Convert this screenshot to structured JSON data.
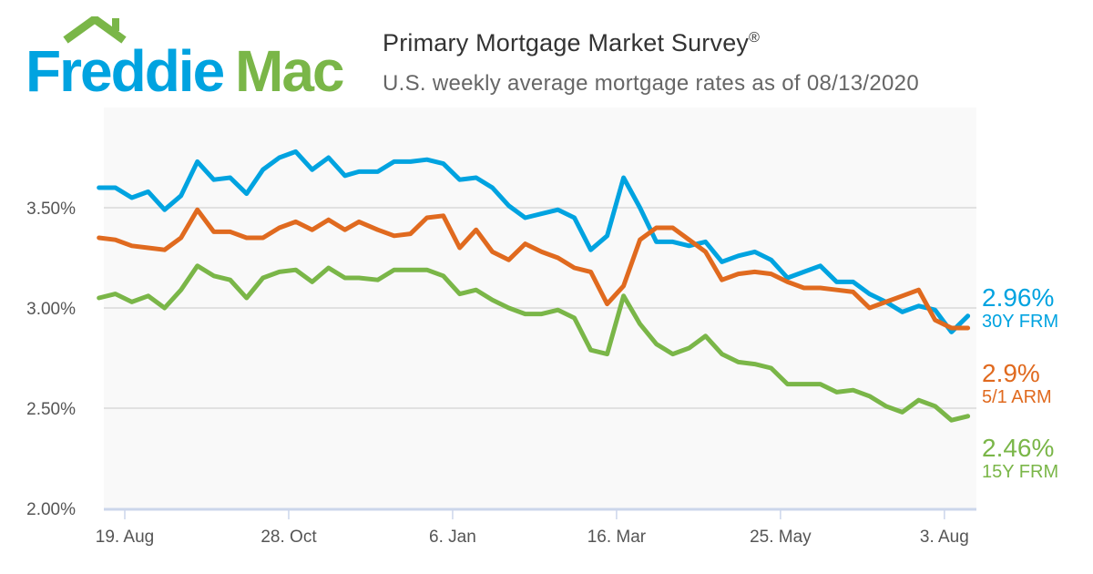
{
  "logo": {
    "text_part1": "Freddie",
    "text_part2": "Mac",
    "color_blue": "#00a3e0",
    "color_green": "#7ab648"
  },
  "header": {
    "title": "Primary Mortgage Market Survey",
    "title_mark": "®",
    "subtitle": "U.S. weekly average mortgage rates as of 08/13/2020"
  },
  "chart_data": {
    "type": "line",
    "title": "Primary Mortgage Market Survey®",
    "subtitle": "U.S. weekly average mortgage rates as of 08/13/2020",
    "x": [
      "2019-08-08",
      "2019-08-15",
      "2019-08-22",
      "2019-08-29",
      "2019-09-05",
      "2019-09-12",
      "2019-09-19",
      "2019-09-26",
      "2019-10-03",
      "2019-10-10",
      "2019-10-17",
      "2019-10-24",
      "2019-10-31",
      "2019-11-07",
      "2019-11-14",
      "2019-11-21",
      "2019-11-27",
      "2019-12-05",
      "2019-12-12",
      "2019-12-19",
      "2019-12-26",
      "2020-01-02",
      "2020-01-09",
      "2020-01-16",
      "2020-01-23",
      "2020-01-30",
      "2020-02-06",
      "2020-02-13",
      "2020-02-20",
      "2020-02-27",
      "2020-03-05",
      "2020-03-12",
      "2020-03-19",
      "2020-03-26",
      "2020-04-02",
      "2020-04-09",
      "2020-04-16",
      "2020-04-23",
      "2020-04-30",
      "2020-05-07",
      "2020-05-14",
      "2020-05-21",
      "2020-05-28",
      "2020-06-04",
      "2020-06-11",
      "2020-06-18",
      "2020-06-25",
      "2020-07-02",
      "2020-07-09",
      "2020-07-16",
      "2020-07-23",
      "2020-07-30",
      "2020-08-06",
      "2020-08-13"
    ],
    "series": [
      {
        "name": "30Y FRM",
        "color": "#00a3e0",
        "last_label": "2.96%",
        "values": [
          3.6,
          3.6,
          3.55,
          3.58,
          3.49,
          3.56,
          3.73,
          3.64,
          3.65,
          3.57,
          3.69,
          3.75,
          3.78,
          3.69,
          3.75,
          3.66,
          3.68,
          3.68,
          3.73,
          3.73,
          3.74,
          3.72,
          3.64,
          3.65,
          3.6,
          3.51,
          3.45,
          3.47,
          3.49,
          3.45,
          3.29,
          3.36,
          3.65,
          3.5,
          3.33,
          3.33,
          3.31,
          3.33,
          3.23,
          3.26,
          3.28,
          3.24,
          3.15,
          3.18,
          3.21,
          3.13,
          3.13,
          3.07,
          3.03,
          2.98,
          3.01,
          2.99,
          2.88,
          2.96
        ]
      },
      {
        "name": "5/1 ARM",
        "color": "#e06a1f",
        "last_label": "2.9%",
        "values": [
          3.35,
          3.34,
          3.31,
          3.3,
          3.29,
          3.35,
          3.49,
          3.38,
          3.38,
          3.35,
          3.35,
          3.4,
          3.43,
          3.39,
          3.44,
          3.39,
          3.43,
          3.39,
          3.36,
          3.37,
          3.45,
          3.46,
          3.3,
          3.39,
          3.28,
          3.24,
          3.32,
          3.28,
          3.25,
          3.2,
          3.18,
          3.02,
          3.11,
          3.34,
          3.4,
          3.4,
          3.34,
          3.28,
          3.14,
          3.17,
          3.18,
          3.17,
          3.13,
          3.1,
          3.1,
          3.09,
          3.08,
          3.0,
          3.03,
          3.06,
          3.09,
          2.94,
          2.9,
          2.9
        ]
      },
      {
        "name": "15Y FRM",
        "color": "#7ab648",
        "last_label": "2.46%",
        "values": [
          3.05,
          3.07,
          3.03,
          3.06,
          3.0,
          3.09,
          3.21,
          3.16,
          3.14,
          3.05,
          3.15,
          3.18,
          3.19,
          3.13,
          3.2,
          3.15,
          3.15,
          3.14,
          3.19,
          3.19,
          3.19,
          3.16,
          3.07,
          3.09,
          3.04,
          3.0,
          2.97,
          2.97,
          2.99,
          2.95,
          2.79,
          2.77,
          3.06,
          2.92,
          2.82,
          2.77,
          2.8,
          2.86,
          2.77,
          2.73,
          2.72,
          2.7,
          2.62,
          2.62,
          2.62,
          2.58,
          2.59,
          2.56,
          2.51,
          2.48,
          2.54,
          2.51,
          2.44,
          2.46
        ]
      }
    ],
    "y_ticks": [
      "2.00%",
      "2.50%",
      "3.00%",
      "3.50%"
    ],
    "y_tick_values": [
      2.0,
      2.5,
      3.0,
      3.5
    ],
    "x_ticks": [
      "19. Aug",
      "28. Oct",
      "6. Jan",
      "16. Mar",
      "25. May",
      "3. Aug"
    ],
    "x_tick_dates": [
      "2019-08-19",
      "2019-10-28",
      "2020-01-06",
      "2020-03-16",
      "2020-05-25",
      "2020-08-03"
    ],
    "ylim": [
      2.0,
      4.0
    ],
    "grid": true,
    "legend": "right",
    "xlabel": "",
    "ylabel": ""
  }
}
